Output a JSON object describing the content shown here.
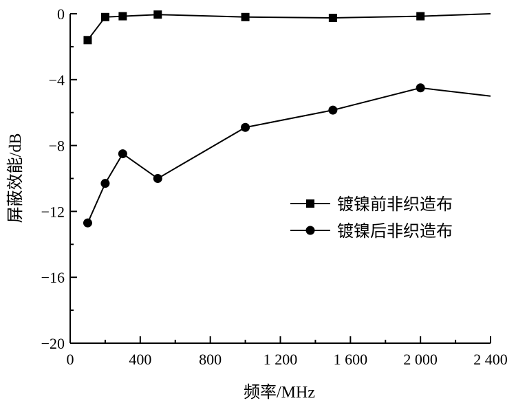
{
  "chart_data": {
    "type": "line",
    "title": "",
    "xlabel_main": "频率",
    "xlabel_unit": "/MHz",
    "ylabel_main": "屏蔽效能",
    "ylabel_unit": "/dB",
    "xlim": [
      0,
      2400
    ],
    "ylim": [
      -20,
      0
    ],
    "x_ticks": [
      0,
      400,
      800,
      1200,
      1600,
      2000,
      2400
    ],
    "x_tick_labels": [
      "0",
      "400",
      "800",
      "1 200",
      "1 600",
      "2 000",
      "2 400"
    ],
    "y_ticks": [
      0,
      -4,
      -8,
      -12,
      -16,
      -20
    ],
    "y_tick_labels": [
      "0",
      "−4",
      "−8",
      "−12",
      "−16",
      "−20"
    ],
    "grid": false,
    "legend_position": "right-middle",
    "series": [
      {
        "name": "镀镍前非织造布",
        "marker": "square",
        "x": [
          100,
          200,
          300,
          500,
          1000,
          1500,
          2000,
          2400
        ],
        "y": [
          -1.6,
          -0.2,
          -0.15,
          -0.05,
          -0.2,
          -0.25,
          -0.15,
          0.0
        ],
        "marker_on": [
          true,
          true,
          true,
          true,
          true,
          true,
          true,
          false
        ]
      },
      {
        "name": "镀镍后非织造布",
        "marker": "circle",
        "x": [
          100,
          200,
          300,
          500,
          1000,
          1500,
          2000,
          2400
        ],
        "y": [
          -12.7,
          -10.3,
          -8.5,
          -10.0,
          -6.9,
          -5.85,
          -4.5,
          -5.0
        ],
        "marker_on": [
          true,
          true,
          true,
          true,
          true,
          true,
          true,
          false
        ]
      }
    ]
  }
}
